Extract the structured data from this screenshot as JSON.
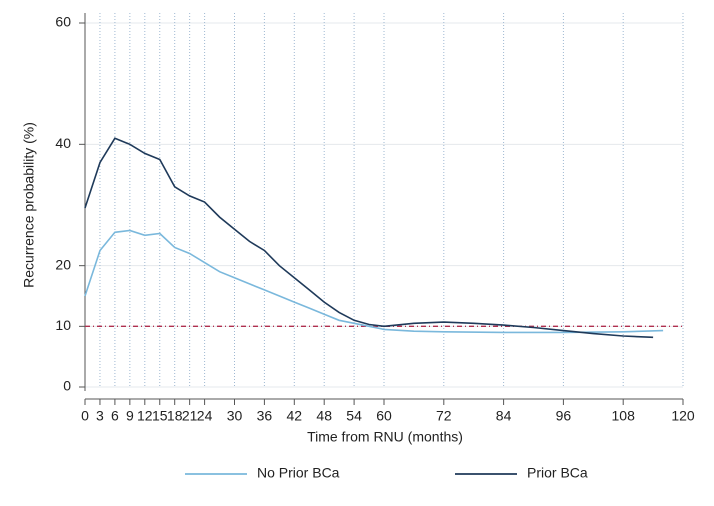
{
  "chart_data": {
    "type": "line",
    "y_label": "Recurrence probability (%)",
    "x_label": "Time from RNU (months)",
    "xlim": [
      0,
      120
    ],
    "ylim": [
      0,
      60
    ],
    "xticks": [
      0,
      3,
      6,
      9,
      12,
      15,
      18,
      21,
      24,
      30,
      36,
      42,
      48,
      54,
      60,
      72,
      84,
      96,
      108,
      120
    ],
    "yticks": [
      0,
      10,
      20,
      40,
      60
    ],
    "grid": true,
    "reference_line": {
      "value": 10,
      "color": "#b0304f"
    },
    "legend": "bottom",
    "series": [
      {
        "name": "No Prior BCa",
        "color": "#7ab8dc",
        "x": [
          0,
          3,
          6,
          9,
          12,
          15,
          18,
          21,
          24,
          27,
          30,
          33,
          36,
          39,
          42,
          45,
          48,
          51,
          54,
          57,
          60,
          66,
          72,
          84,
          96,
          108,
          116
        ],
        "values": [
          15,
          22.5,
          25.5,
          25.8,
          25,
          25.3,
          23,
          22,
          20.5,
          19,
          18,
          17,
          16,
          15,
          14,
          13,
          12,
          11,
          10.5,
          10,
          9.5,
          9.2,
          9.1,
          9.0,
          9.0,
          9.1,
          9.3
        ]
      },
      {
        "name": "Prior BCa",
        "color": "#1f3a5a",
        "x": [
          0,
          3,
          6,
          9,
          12,
          15,
          18,
          21,
          24,
          27,
          30,
          33,
          36,
          39,
          42,
          45,
          48,
          51,
          54,
          57,
          60,
          66,
          72,
          78,
          84,
          90,
          96,
          102,
          108,
          114
        ],
        "values": [
          29.5,
          37,
          41,
          40,
          38.5,
          37.5,
          33,
          31.5,
          30.5,
          28,
          26,
          24,
          22.5,
          20,
          18,
          16,
          14,
          12.3,
          11,
          10.3,
          10,
          10.5,
          10.7,
          10.5,
          10.2,
          9.8,
          9.3,
          8.8,
          8.4,
          8.2
        ]
      }
    ]
  }
}
